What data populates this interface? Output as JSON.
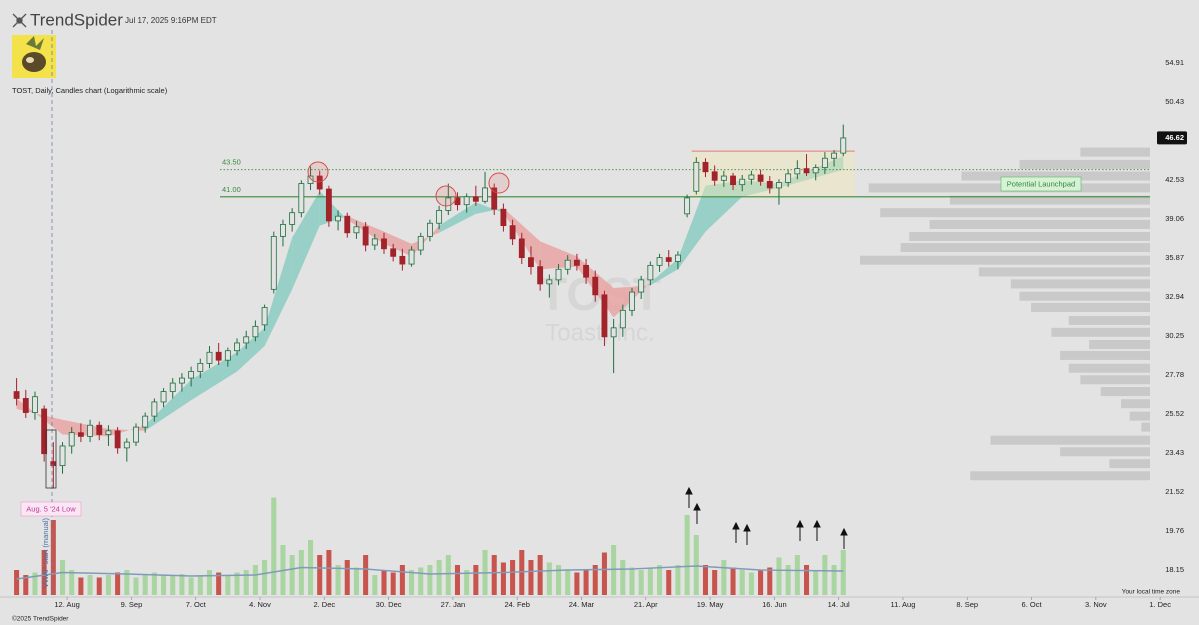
{
  "header": {
    "brand": "TrendSpider",
    "timestamp": "Jul 17, 2025 9:16PM EDT"
  },
  "footer": {
    "copyright": "©2025 TrendSpider",
    "timezone": "Your local time zone"
  },
  "chart_data": {
    "type": "candlestick",
    "title": "TOST, Daily, Candles chart (Logarithmic scale)",
    "watermark": {
      "symbol": "TOST",
      "name": "Toast, Inc."
    },
    "log_scale": true,
    "up_color": "#1f6f3f",
    "down_color": "#a3232b",
    "volume_up_color": "#a8d5a0",
    "volume_down_color": "#c8554d",
    "x": [
      "2024-07-21",
      "2024-07-25",
      "2024-07-29",
      "2024-08-02",
      "2024-08-06",
      "2024-08-10",
      "2024-08-14",
      "2024-08-18",
      "2024-08-22",
      "2024-08-26",
      "2024-08-30",
      "2024-09-03",
      "2024-09-07",
      "2024-09-11",
      "2024-09-15",
      "2024-09-19",
      "2024-09-23",
      "2024-09-27",
      "2024-10-01",
      "2024-10-05",
      "2024-10-09",
      "2024-10-13",
      "2024-10-17",
      "2024-10-21",
      "2024-10-25",
      "2024-10-29",
      "2024-11-02",
      "2024-11-06",
      "2024-11-10",
      "2024-11-14",
      "2024-11-18",
      "2024-11-22",
      "2024-11-26",
      "2024-11-30",
      "2024-12-04",
      "2024-12-08",
      "2024-12-12",
      "2024-12-16",
      "2024-12-20",
      "2024-12-24",
      "2024-12-28",
      "2025-01-01",
      "2025-01-05",
      "2025-01-09",
      "2025-01-13",
      "2025-01-17",
      "2025-01-21",
      "2025-01-25",
      "2025-01-29",
      "2025-02-02",
      "2025-02-06",
      "2025-02-10",
      "2025-02-14",
      "2025-02-18",
      "2025-02-22",
      "2025-02-26",
      "2025-03-02",
      "2025-03-06",
      "2025-03-10",
      "2025-03-14",
      "2025-03-18",
      "2025-03-22",
      "2025-03-26",
      "2025-03-30",
      "2025-04-03",
      "2025-04-07",
      "2025-04-11",
      "2025-04-15",
      "2025-04-19",
      "2025-04-23",
      "2025-04-27",
      "2025-05-01",
      "2025-05-05",
      "2025-05-09",
      "2025-05-13",
      "2025-05-17",
      "2025-05-21",
      "2025-05-25",
      "2025-05-29",
      "2025-06-02",
      "2025-06-06",
      "2025-06-10",
      "2025-06-14",
      "2025-06-18",
      "2025-06-22",
      "2025-06-26",
      "2025-06-30",
      "2025-07-04",
      "2025-07-08",
      "2025-07-12",
      "2025-07-16"
    ],
    "open": [
      26.8,
      26.4,
      25.6,
      25.8,
      23.0,
      22.8,
      23.8,
      24.5,
      24.3,
      24.9,
      24.4,
      24.6,
      23.7,
      24.0,
      24.8,
      25.4,
      26.2,
      26.8,
      27.3,
      27.6,
      28.0,
      28.5,
      29.2,
      28.7,
      29.3,
      29.8,
      30.2,
      31.0,
      33.5,
      37.6,
      38.6,
      39.6,
      42.2,
      42.9,
      41.7,
      38.9,
      39.3,
      37.9,
      38.4,
      36.9,
      37.4,
      36.6,
      36.0,
      35.4,
      36.5,
      37.6,
      38.7,
      39.8,
      40.9,
      40.3,
      41.0,
      40.6,
      41.8,
      39.9,
      38.5,
      37.4,
      35.9,
      35.2,
      33.9,
      34.2,
      35.0,
      35.7,
      35.3,
      34.4,
      33.1,
      30.2,
      30.8,
      32.0,
      33.3,
      34.2,
      35.3,
      35.9,
      35.6,
      39.5,
      41.5,
      44.2,
      43.3,
      42.5,
      42.9,
      42.1,
      42.6,
      43.0,
      42.4,
      41.8,
      42.3,
      43.1,
      43.6,
      43.2,
      43.7,
      44.6,
      45.1
    ],
    "high": [
      27.6,
      26.9,
      26.8,
      26.0,
      24.0,
      24.0,
      24.8,
      25.0,
      25.2,
      25.1,
      24.9,
      24.8,
      24.2,
      25.0,
      25.6,
      26.4,
      27.0,
      27.6,
      27.9,
      28.3,
      28.8,
      29.6,
      29.8,
      29.5,
      30.1,
      30.6,
      31.3,
      32.4,
      38.0,
      39.0,
      40.0,
      42.5,
      43.8,
      43.4,
      42.0,
      39.8,
      39.6,
      38.9,
      38.8,
      37.8,
      37.9,
      37.0,
      36.6,
      36.8,
      37.9,
      39.0,
      40.2,
      42.2,
      41.4,
      41.3,
      42.0,
      43.3,
      42.2,
      40.4,
      39.0,
      37.9,
      36.8,
      35.7,
      34.6,
      35.4,
      36.1,
      36.2,
      35.8,
      34.9,
      33.4,
      31.4,
      32.4,
      33.6,
      34.5,
      35.6,
      36.2,
      36.5,
      36.4,
      41.2,
      44.7,
      44.6,
      43.9,
      43.4,
      43.2,
      43.0,
      43.4,
      43.5,
      42.9,
      42.6,
      43.5,
      44.4,
      45.0,
      44.0,
      45.2,
      45.4,
      48.0
    ],
    "low": [
      26.0,
      25.3,
      25.2,
      23.0,
      21.7,
      22.4,
      23.4,
      24.0,
      24.0,
      24.1,
      23.8,
      23.4,
      23.0,
      23.8,
      24.5,
      25.1,
      25.9,
      26.4,
      26.8,
      27.1,
      27.6,
      28.2,
      28.4,
      28.3,
      29.0,
      29.4,
      29.9,
      30.6,
      33.2,
      36.8,
      38.0,
      39.2,
      41.6,
      41.2,
      38.4,
      38.1,
      37.5,
      37.4,
      36.4,
      36.5,
      36.2,
      35.6,
      34.9,
      35.2,
      36.1,
      37.2,
      38.2,
      39.4,
      39.8,
      39.6,
      40.2,
      40.4,
      39.4,
      38.0,
      36.9,
      35.4,
      34.6,
      33.4,
      32.9,
      33.8,
      34.6,
      34.9,
      33.9,
      32.6,
      29.6,
      27.9,
      30.2,
      31.6,
      32.8,
      33.8,
      34.8,
      35.2,
      35.0,
      39.2,
      41.2,
      42.8,
      42.0,
      41.9,
      41.6,
      41.5,
      42.1,
      42.0,
      41.3,
      40.3,
      41.9,
      42.6,
      42.9,
      42.5,
      43.1,
      43.8,
      44.8
    ],
    "close": [
      26.4,
      25.6,
      26.5,
      23.4,
      22.8,
      23.8,
      24.5,
      24.3,
      24.9,
      24.4,
      24.6,
      23.7,
      24.0,
      24.8,
      25.4,
      26.2,
      26.8,
      27.3,
      27.6,
      28.0,
      28.5,
      29.2,
      28.7,
      29.3,
      29.8,
      30.2,
      30.9,
      32.2,
      37.6,
      38.6,
      39.6,
      42.2,
      42.9,
      41.7,
      38.9,
      39.3,
      37.9,
      38.4,
      36.9,
      37.4,
      36.6,
      36.0,
      35.4,
      36.5,
      37.6,
      38.7,
      39.8,
      40.9,
      40.3,
      41.0,
      40.6,
      41.8,
      39.9,
      38.5,
      37.4,
      35.9,
      35.2,
      33.9,
      34.2,
      35.0,
      35.7,
      35.3,
      34.4,
      33.1,
      30.2,
      30.8,
      32.0,
      33.3,
      34.2,
      35.3,
      35.9,
      35.6,
      36.1,
      40.9,
      44.2,
      43.3,
      42.5,
      42.9,
      42.1,
      42.6,
      43.0,
      42.4,
      41.8,
      42.3,
      43.1,
      43.6,
      43.2,
      43.7,
      44.6,
      45.1,
      46.62
    ],
    "volume": [
      5,
      4,
      4.5,
      9,
      15,
      7,
      5,
      3.5,
      4,
      3.5,
      4,
      4.5,
      5,
      3.5,
      4,
      4.5,
      4,
      3.8,
      4.2,
      3.5,
      4,
      5,
      4.5,
      4,
      4.5,
      5,
      6,
      7,
      19.5,
      10,
      8,
      9,
      11,
      8,
      9,
      6,
      7,
      5.5,
      8,
      4,
      5,
      4.5,
      6,
      5,
      5.5,
      6,
      7,
      8,
      6,
      5,
      6,
      9,
      8,
      6.5,
      7,
      9,
      7,
      8,
      6.5,
      6,
      5,
      4.5,
      5,
      6,
      8.5,
      10,
      7,
      5.5,
      5,
      5.5,
      6,
      5,
      6,
      16,
      12,
      6,
      5,
      7,
      5.5,
      5,
      4.5,
      5,
      5.5,
      7.5,
      6,
      8,
      6,
      5,
      8,
      6,
      9
    ],
    "volume_lim": [
      0,
      20
    ],
    "volume_average": {
      "x": [
        "2024-07-21",
        "2024-08-10",
        "2024-09-07",
        "2024-10-05",
        "2024-11-02",
        "2024-11-22",
        "2024-12-20",
        "2025-01-17",
        "2025-02-18",
        "2025-03-18",
        "2025-04-15",
        "2025-05-13",
        "2025-06-10",
        "2025-07-16"
      ],
      "values": [
        3.2,
        4.5,
        4.2,
        3.8,
        4,
        5.5,
        5.2,
        4.2,
        4.5,
        5,
        5.2,
        5.8,
        5,
        4.8
      ],
      "color": "#7f9bb8"
    },
    "ribbon": {
      "x": [
        "2024-07-21",
        "2024-08-10",
        "2024-08-30",
        "2024-09-15",
        "2024-10-05",
        "2024-10-25",
        "2024-11-06",
        "2024-11-18",
        "2024-11-30",
        "2024-12-12",
        "2024-12-28",
        "2025-01-09",
        "2025-01-21",
        "2025-02-06",
        "2025-02-18",
        "2025-03-06",
        "2025-03-22",
        "2025-04-07",
        "2025-04-23",
        "2025-05-05",
        "2025-05-17",
        "2025-06-02",
        "2025-06-18",
        "2025-07-16"
      ],
      "fast": [
        26.4,
        24.4,
        24.3,
        24.9,
        27.5,
        29.2,
        30.8,
        37.5,
        41.5,
        39.0,
        37.0,
        36.0,
        38.5,
        40.5,
        39.6,
        35.0,
        35.2,
        31.5,
        34.0,
        35.8,
        42.0,
        42.5,
        42.2,
        44.8
      ],
      "slow": [
        25.8,
        25.2,
        24.7,
        24.6,
        26.3,
        28.0,
        29.6,
        33.5,
        38.5,
        39.3,
        38.0,
        37.0,
        37.9,
        39.5,
        40.0,
        37.2,
        36.0,
        33.6,
        33.8,
        35.0,
        38.0,
        41.0,
        41.8,
        43.5
      ],
      "up_color": "#8fcdc3",
      "down_color": "#e8a6a6"
    },
    "volume_profile": {
      "prices": [
        45.2,
        44.0,
        42.9,
        41.8,
        40.7,
        39.6,
        38.6,
        37.6,
        36.7,
        35.7,
        34.8,
        33.9,
        33.0,
        32.2,
        31.3,
        30.5,
        29.7,
        29.0,
        28.2,
        27.5,
        26.8,
        26.1,
        25.4,
        24.8,
        24.1,
        23.5,
        22.9,
        22.3
      ],
      "values": [
        24,
        45,
        65,
        97,
        69,
        93,
        76,
        83,
        86,
        100,
        59,
        48,
        45,
        41,
        28,
        34,
        21,
        31,
        28,
        24,
        17,
        10,
        7,
        3,
        55,
        31,
        14,
        62
      ],
      "xlim": [
        0,
        100
      ],
      "color": "#c9c9c9"
    },
    "levels": [
      {
        "value": 43.5,
        "label": "43.50",
        "style": "dotted"
      },
      {
        "value": 41,
        "label": "41.00",
        "style": "solid"
      }
    ],
    "level_color": "#3a8a3a",
    "range_box": {
      "x": [
        "2025-05-11",
        "2025-07-21"
      ],
      "top": 45.3,
      "bottom": 41.0
    },
    "annotations": {
      "launchpad": "Potential Launchpad",
      "low_label": "Aug. 5 '24 Low",
      "vwap_label": "VWAP start (manual)"
    },
    "xlim": [
      "2024-07-19",
      "2025-12-14"
    ],
    "xticks": [
      {
        "value": "2024-08-12",
        "label": "12. Aug"
      },
      {
        "value": "2024-09-09",
        "label": "9. Sep"
      },
      {
        "value": "2024-10-07",
        "label": "7. Oct"
      },
      {
        "value": "2024-11-04",
        "label": "4. Nov"
      },
      {
        "value": "2024-12-02",
        "label": "2. Dec"
      },
      {
        "value": "2024-12-30",
        "label": "30. Dec"
      },
      {
        "value": "2025-01-27",
        "label": "27. Jan"
      },
      {
        "value": "2025-02-24",
        "label": "24. Feb"
      },
      {
        "value": "2025-03-24",
        "label": "24. Mar"
      },
      {
        "value": "2025-04-21",
        "label": "21. Apr"
      },
      {
        "value": "2025-05-19",
        "label": "19. May"
      },
      {
        "value": "2025-06-16",
        "label": "16. Jun"
      },
      {
        "value": "2025-07-14",
        "label": "14. Jul"
      },
      {
        "value": "2025-08-11",
        "label": "11. Aug"
      },
      {
        "value": "2025-09-08",
        "label": "8. Sep"
      },
      {
        "value": "2025-10-06",
        "label": "6. Oct"
      },
      {
        "value": "2025-11-03",
        "label": "3. Nov"
      },
      {
        "value": "2025-12-01",
        "label": "1. Dec"
      }
    ],
    "ylim": [
      17.19,
      60.97
    ],
    "yticks": [
      54.91,
      50.43,
      42.53,
      39.06,
      35.87,
      32.94,
      30.25,
      27.78,
      25.52,
      23.43,
      21.52,
      19.76,
      18.15
    ]
  }
}
